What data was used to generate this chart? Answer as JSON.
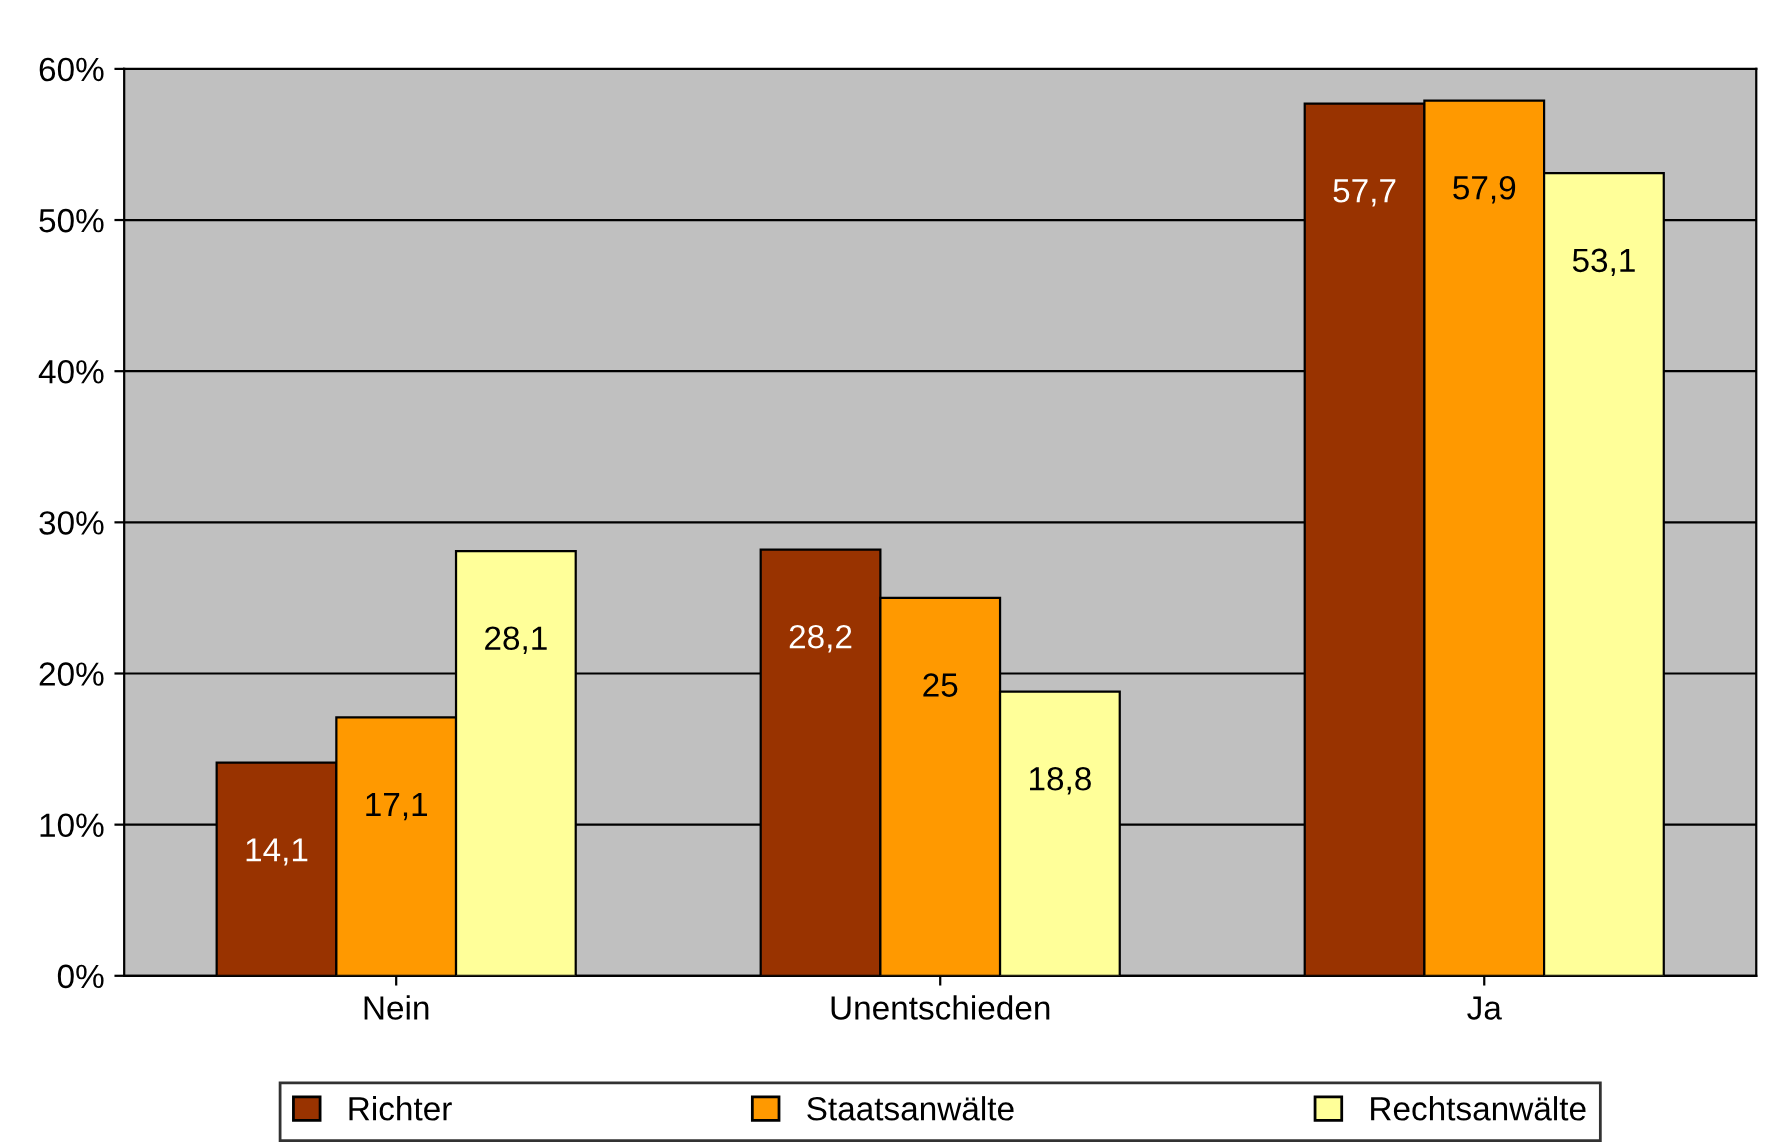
{
  "chart_data": {
    "type": "bar",
    "categories": [
      "Nein",
      "Unentschieden",
      "Ja"
    ],
    "series": [
      {
        "name": "Richter",
        "color": "#993300",
        "values": [
          14.1,
          28.2,
          57.7
        ],
        "value_labels": [
          "14,1",
          "28,2",
          "57,7"
        ]
      },
      {
        "name": "Staatsanwälte",
        "color": "#ff9900",
        "values": [
          17.1,
          25,
          57.9
        ],
        "value_labels": [
          "17,1",
          "25",
          "57,9"
        ]
      },
      {
        "name": "Rechtsanwälte",
        "color": "#ffff99",
        "values": [
          28.1,
          18.8,
          53.1
        ],
        "value_labels": [
          "28,1",
          "18,8",
          "53,1"
        ]
      }
    ],
    "ylim": [
      0,
      60
    ],
    "yticks": [
      {
        "value": 0,
        "label": "0%"
      },
      {
        "value": 10,
        "label": "10%"
      },
      {
        "value": 20,
        "label": "20%"
      },
      {
        "value": 30,
        "label": "30%"
      },
      {
        "value": 40,
        "label": "40%"
      },
      {
        "value": 50,
        "label": "50%"
      },
      {
        "value": 60,
        "label": "60%"
      }
    ],
    "grid": "y",
    "legend": "bottom"
  }
}
